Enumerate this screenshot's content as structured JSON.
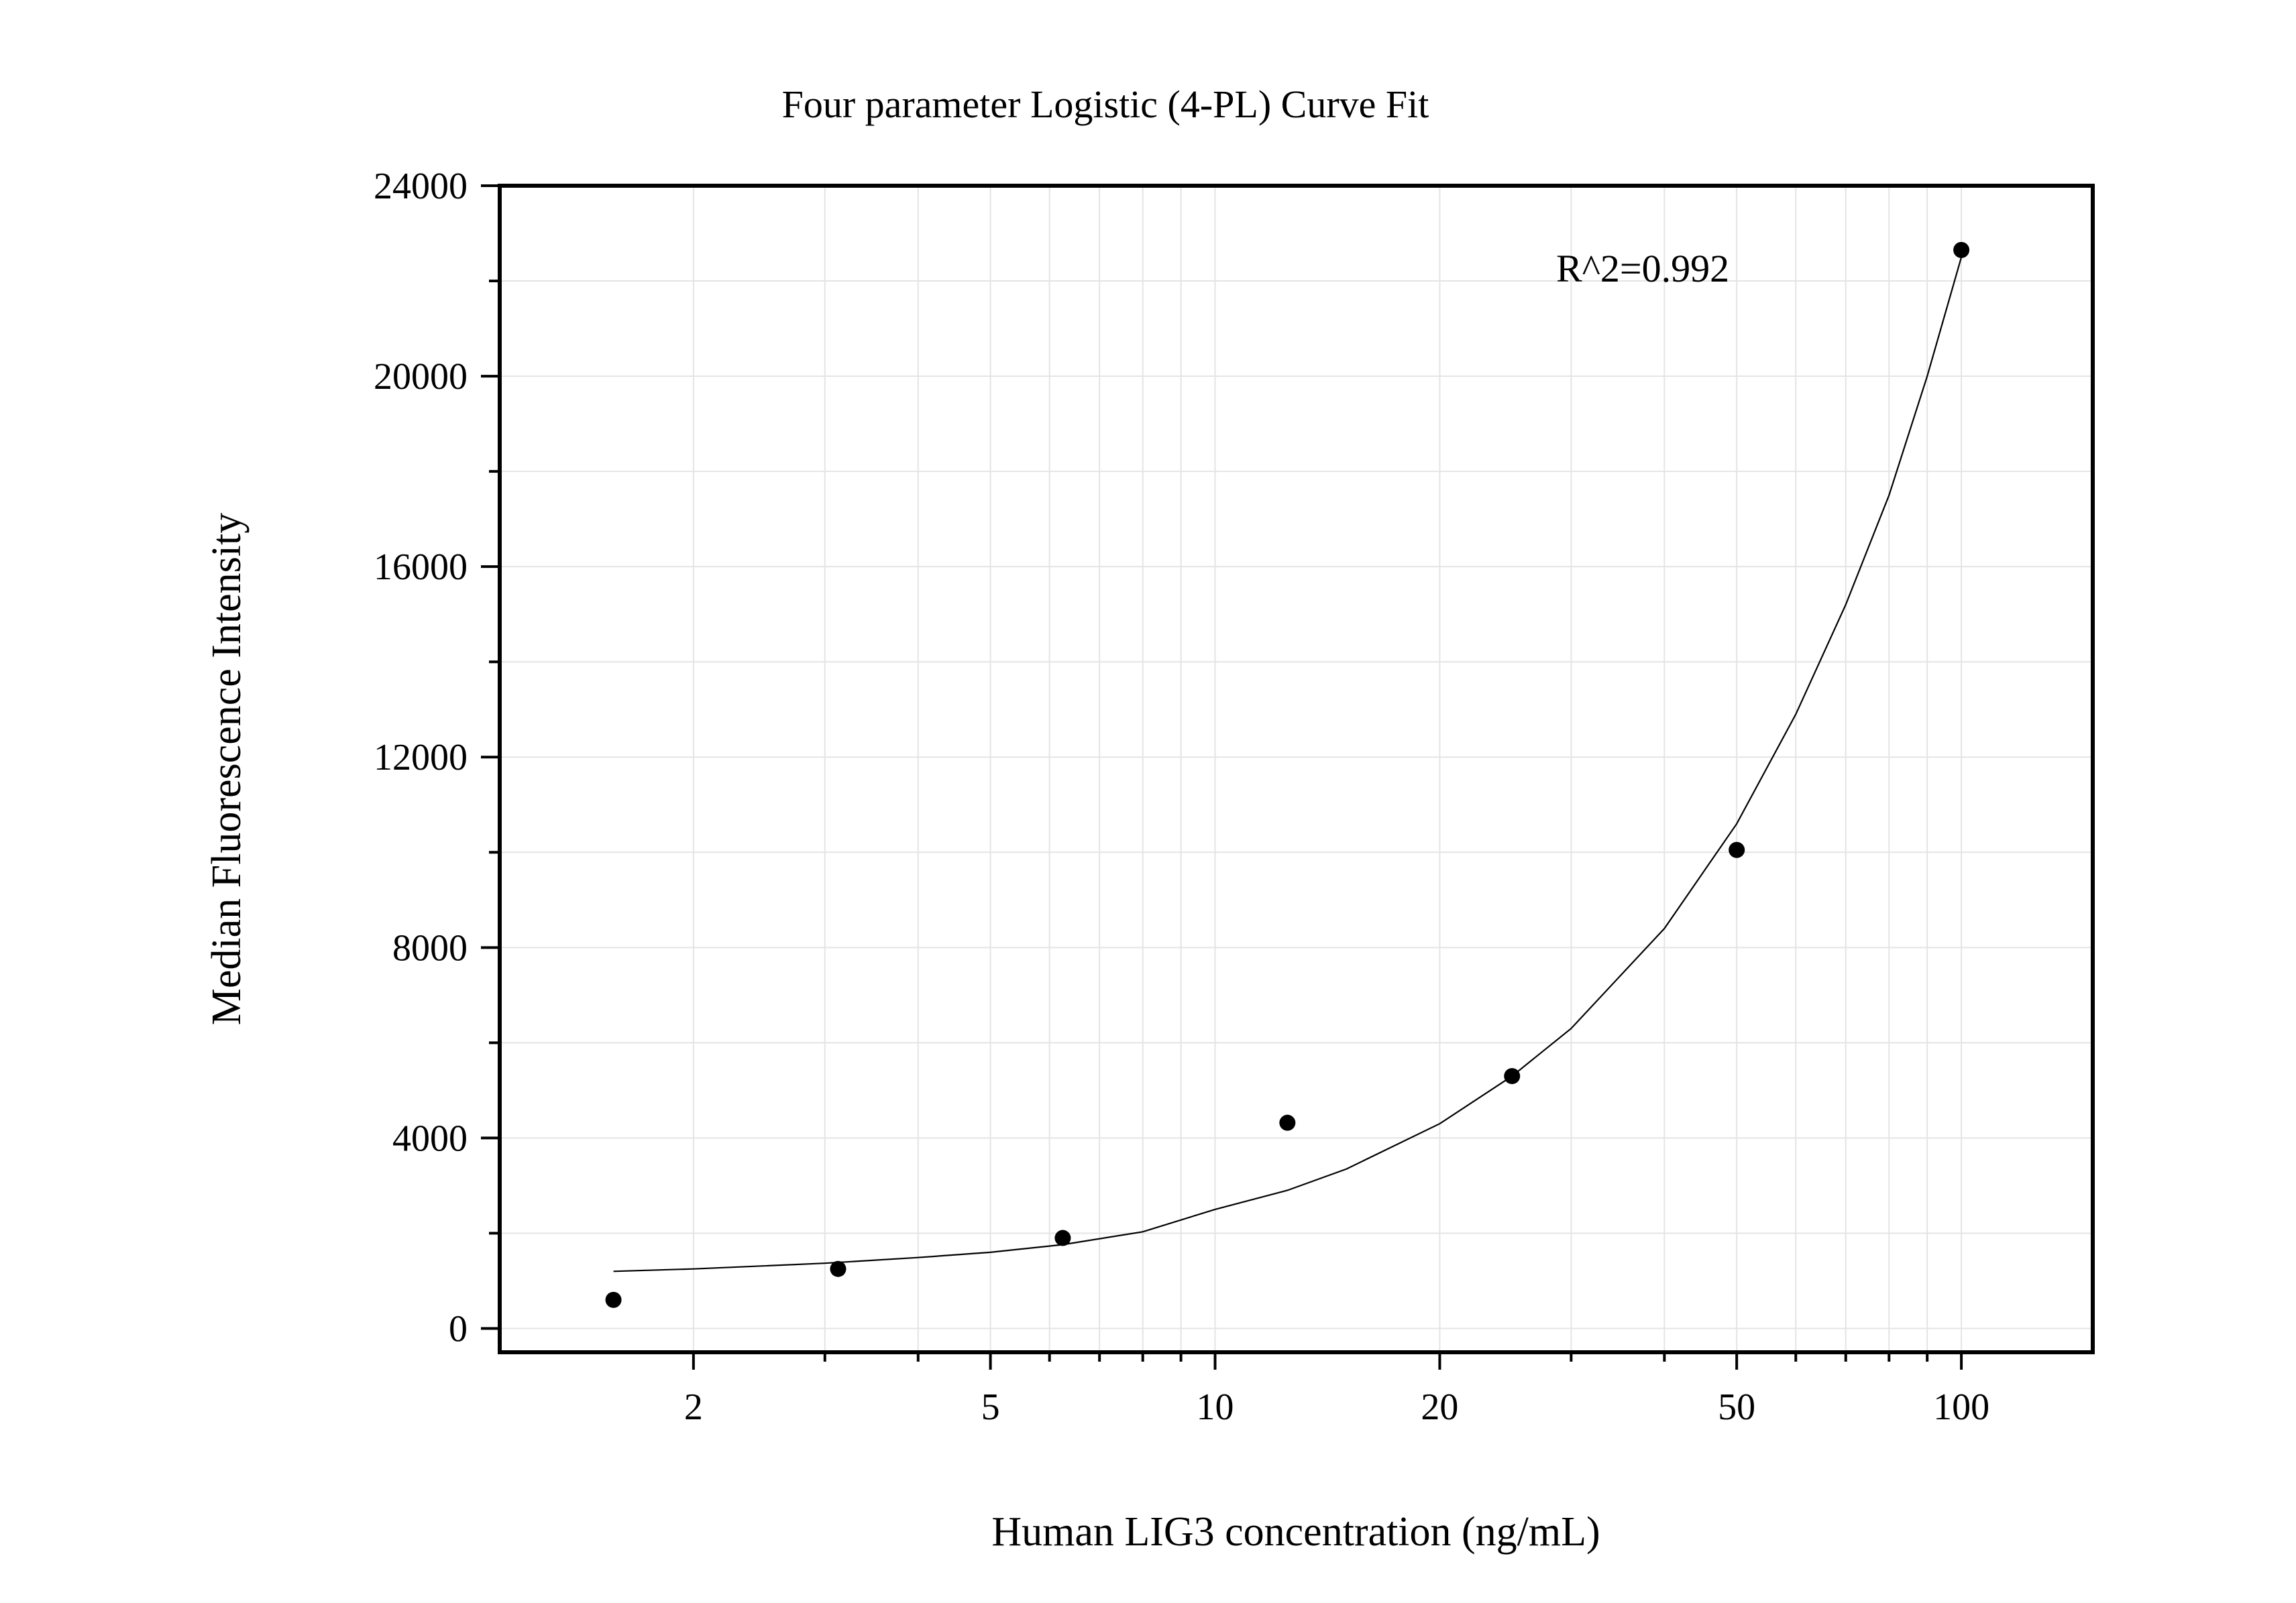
{
  "chart_data": {
    "type": "scatter",
    "title": "Four parameter Logistic (4-PL) Curve Fit",
    "xlabel": "Human LIG3 concentration (ng/mL)",
    "ylabel": "Median Fluorescence Intensity",
    "x_scale": "log",
    "xlim": [
      1.1,
      150
    ],
    "ylim": [
      -500,
      24000
    ],
    "x_ticks": [
      2,
      5,
      10,
      20,
      50,
      100
    ],
    "y_ticks": [
      0,
      4000,
      8000,
      12000,
      16000,
      20000,
      24000
    ],
    "grid": true,
    "points": {
      "x": [
        1.5625,
        3.125,
        6.25,
        12.5,
        25,
        50,
        100
      ],
      "y": [
        600,
        1250,
        1900,
        4320,
        5300,
        10050,
        22650
      ]
    },
    "fit_curve": {
      "model": "4-PL",
      "x": [
        1.5625,
        2,
        3,
        4,
        5,
        6.25,
        8,
        10,
        12.5,
        15,
        20,
        25,
        30,
        40,
        50,
        60,
        70,
        80,
        90,
        100
      ],
      "y": [
        1200,
        1250,
        1370,
        1490,
        1600,
        1760,
        2030,
        2500,
        2900,
        3350,
        4300,
        5300,
        6300,
        8400,
        10600,
        12900,
        15200,
        17500,
        20000,
        22500
      ]
    },
    "annotation": "R^2=0.992"
  },
  "colors": {
    "points": "#000000",
    "curve": "#000000",
    "grid": "#e4e4e4"
  }
}
